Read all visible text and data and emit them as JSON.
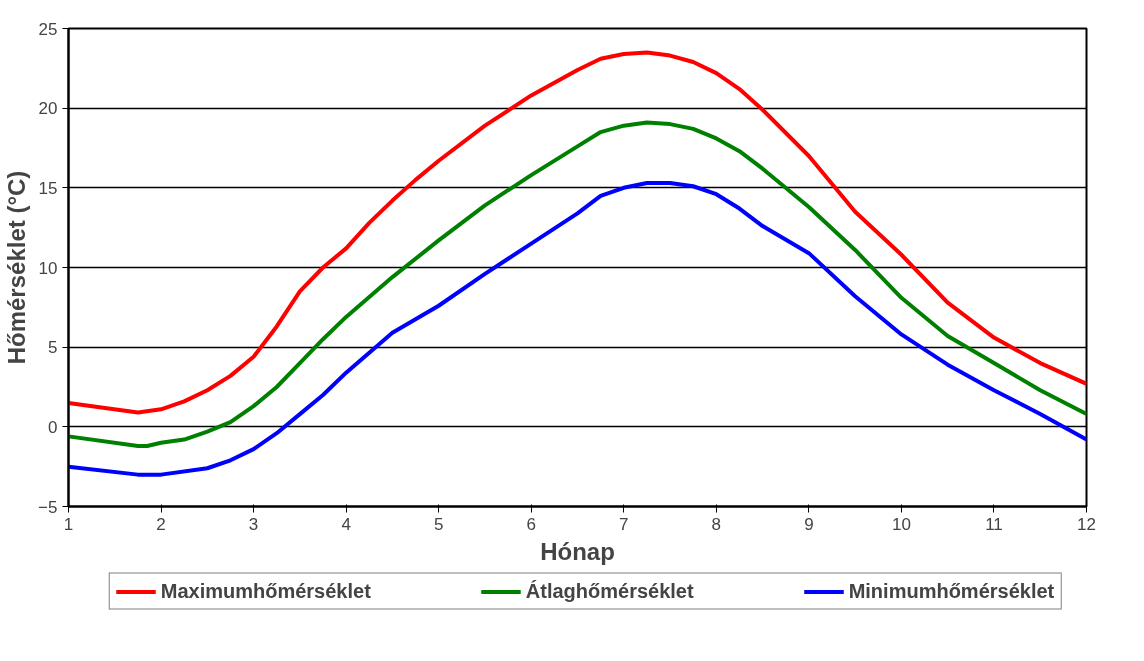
{
  "chart_data": {
    "type": "line",
    "xlabel": "Hónap",
    "ylabel": "Hőmérséklet (°C)",
    "xlim": [
      1,
      12
    ],
    "xticks": [
      1,
      2,
      3,
      4,
      5,
      6,
      7,
      8,
      9,
      10,
      11,
      12
    ],
    "ylim": [
      -5,
      25
    ],
    "yticks": [
      -5,
      0,
      5,
      10,
      15,
      20,
      25
    ],
    "grid": "y",
    "legend": "bottom",
    "marker": "none",
    "line_style": "solid",
    "series": [
      {
        "name": "Maximumhőmérséklet",
        "color": "#ff0000",
        "x": [
          1,
          1.75,
          2,
          2.25,
          2.5,
          2.75,
          3,
          3.25,
          3.5,
          3.75,
          4,
          4.25,
          4.5,
          4.75,
          5,
          5.5,
          6,
          6.5,
          6.75,
          7,
          7.25,
          7.5,
          7.75,
          8,
          8.25,
          8.5,
          9,
          9.5,
          10,
          10.5,
          11,
          11.5,
          12
        ],
        "values": [
          1.5,
          0.9,
          1.1,
          1.6,
          2.3,
          3.2,
          4.4,
          6.3,
          8.5,
          10,
          11.2,
          12.8,
          14.2,
          15.5,
          16.7,
          18.9,
          20.8,
          22.4,
          23.1,
          23.4,
          23.5,
          23.3,
          22.9,
          22.2,
          21.2,
          19.9,
          17.0,
          13.5,
          10.8,
          7.8,
          5.6,
          4.0,
          2.7
        ]
      },
      {
        "name": "Átlaghőmérséklet",
        "color": "#008000",
        "x": [
          1,
          1.75,
          1.85,
          2,
          2.25,
          2.5,
          2.75,
          3,
          3.25,
          3.5,
          3.75,
          4,
          4.5,
          5,
          5.5,
          6,
          6.5,
          6.75,
          7,
          7.25,
          7.5,
          7.75,
          8,
          8.25,
          8.5,
          9,
          9.5,
          10,
          10.5,
          11,
          11.5,
          12
        ],
        "values": [
          -0.6,
          -1.2,
          -1.2,
          -1.0,
          -0.8,
          -0.3,
          0.3,
          1.3,
          2.5,
          4.0,
          5.5,
          6.9,
          9.4,
          11.7,
          13.9,
          15.8,
          17.6,
          18.5,
          18.9,
          19.1,
          19.0,
          18.7,
          18.1,
          17.3,
          16.2,
          13.8,
          11.1,
          8.1,
          5.7,
          4.0,
          2.3,
          0.8
        ]
      },
      {
        "name": "Minimumhőmérséklet",
        "color": "#0000ff",
        "x": [
          1,
          1.75,
          2,
          2.5,
          2.75,
          3,
          3.25,
          3.5,
          3.75,
          4,
          4.5,
          5,
          5.5,
          6,
          6.5,
          6.75,
          7,
          7.25,
          7.5,
          7.75,
          8,
          8.25,
          8.5,
          9,
          9.5,
          10,
          10.5,
          11,
          11.5,
          12
        ],
        "values": [
          -2.5,
          -3.0,
          -3.0,
          -2.6,
          -2.1,
          -1.4,
          -0.4,
          0.8,
          2.0,
          3.4,
          5.9,
          7.6,
          9.6,
          11.5,
          13.4,
          14.5,
          15.0,
          15.3,
          15.3,
          15.1,
          14.6,
          13.7,
          12.6,
          10.9,
          8.2,
          5.8,
          3.9,
          2.3,
          0.8,
          -0.8
        ]
      }
    ]
  }
}
